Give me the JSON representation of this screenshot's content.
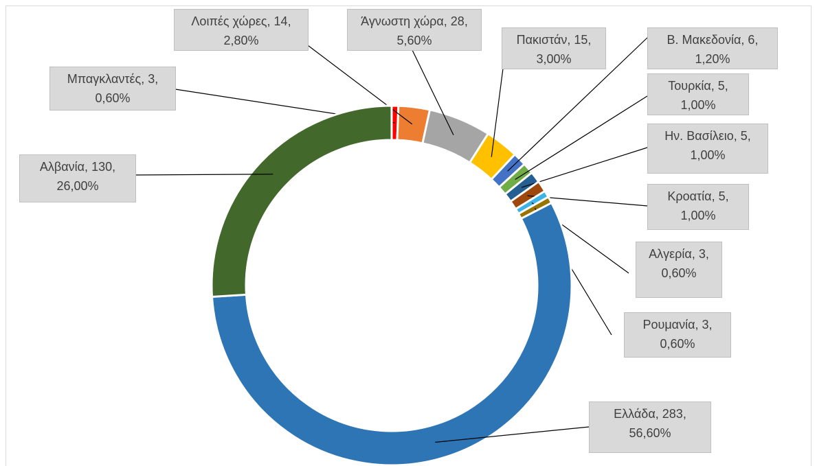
{
  "chart_data": {
    "type": "donut",
    "categories": [
      "Μπαγκλαντές",
      "Λοιπές χώρες",
      "Άγνωστη χώρα",
      "Πακιστάν",
      "Β. Μακεδονία",
      "Τουρκία",
      "Ην. Βασίλειο",
      "Κροατία",
      "Αλγερία",
      "Ρουμανία",
      "Ελλάδα",
      "Αλβανία"
    ],
    "values": [
      3,
      14,
      28,
      15,
      6,
      5,
      5,
      5,
      3,
      3,
      283,
      130
    ],
    "percentages": [
      0.6,
      2.8,
      5.6,
      3.0,
      1.2,
      1.0,
      1.0,
      1.0,
      0.6,
      0.6,
      56.6,
      26.0
    ],
    "percentage_labels": [
      "0,60%",
      "2,80%",
      "5,60%",
      "3,00%",
      "1,20%",
      "1,00%",
      "1,00%",
      "1,00%",
      "0,60%",
      "0,60%",
      "56,60%",
      "26,00%"
    ],
    "label_separator": ", ",
    "colors": [
      "#ff0000",
      "#ed7d31",
      "#a5a5a5",
      "#ffc000",
      "#4472c4",
      "#70ad47",
      "#255e91",
      "#9e480e",
      "#3cb4e6",
      "#997300",
      "#2e75b6",
      "#43682b"
    ]
  }
}
